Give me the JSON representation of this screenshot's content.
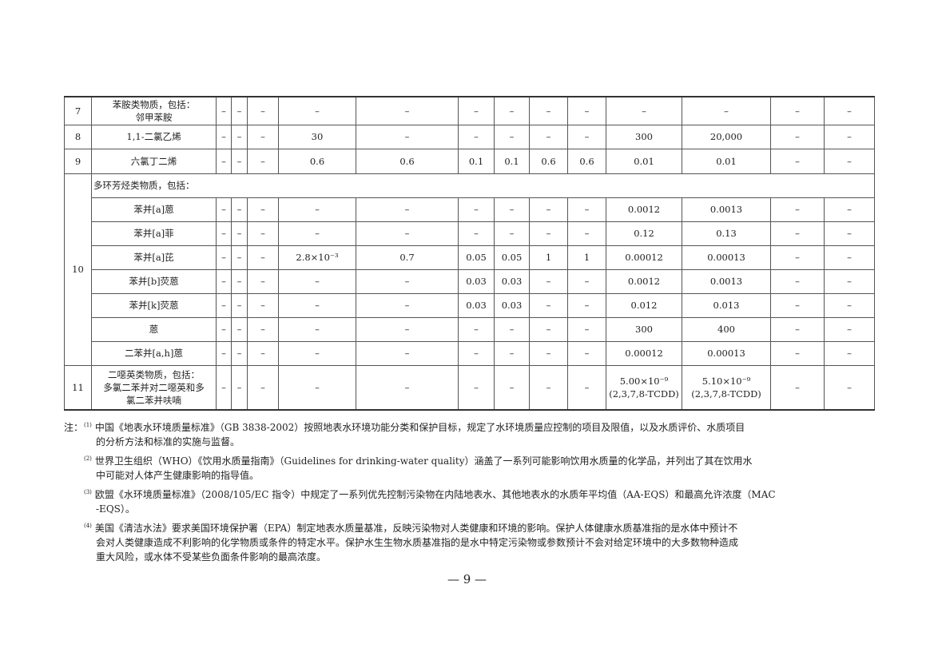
{
  "table": {
    "rows": [
      {
        "num": "7",
        "name": [
          "苯胺类物质，包括：",
          "邻甲苯胺"
        ],
        "values": [
          "–",
          "–",
          "–",
          "–",
          "–",
          "–",
          "–",
          "–",
          "–",
          "–",
          "–",
          "–",
          "–"
        ]
      },
      {
        "num": "8",
        "name": [
          "1,1-二氯乙烯"
        ],
        "values": [
          "–",
          "–",
          "–",
          "30",
          "–",
          "–",
          "–",
          "–",
          "–",
          "300",
          "20,000",
          "–",
          "–"
        ]
      },
      {
        "num": "9",
        "name": [
          "六氯丁二烯"
        ],
        "values": [
          "–",
          "–",
          "–",
          "0.6",
          "0.6",
          "0.1",
          "0.1",
          "0.6",
          "0.6",
          "0.01",
          "0.01",
          "–",
          "–"
        ]
      }
    ],
    "group10": {
      "num": "10",
      "header": "多环芳烃类物质，包括：",
      "rows": [
        {
          "name": [
            "苯并[a]蒽"
          ],
          "values": [
            "–",
            "–",
            "–",
            "–",
            "–",
            "–",
            "–",
            "–",
            "–",
            "0.0012",
            "0.0013",
            "–",
            "–"
          ]
        },
        {
          "name": [
            "苯并[a]菲"
          ],
          "values": [
            "–",
            "–",
            "–",
            "–",
            "–",
            "–",
            "–",
            "–",
            "–",
            "0.12",
            "0.13",
            "–",
            "–"
          ]
        },
        {
          "name": [
            "苯并[a]芘"
          ],
          "values": [
            "–",
            "–",
            "–",
            "2.8×10⁻³",
            "0.7",
            "0.05",
            "0.05",
            "1",
            "1",
            "0.00012",
            "0.00013",
            "–",
            "–"
          ]
        },
        {
          "name": [
            "苯并[b]荧蒽"
          ],
          "values": [
            "–",
            "–",
            "–",
            "–",
            "–",
            "0.03",
            "0.03",
            "–",
            "–",
            "0.0012",
            "0.0013",
            "–",
            "–"
          ]
        },
        {
          "name": [
            "苯并[k]荧蒽"
          ],
          "values": [
            "–",
            "–",
            "–",
            "–",
            "–",
            "0.03",
            "0.03",
            "–",
            "–",
            "0.012",
            "0.013",
            "–",
            "–"
          ]
        },
        {
          "name": [
            "蒽"
          ],
          "values": [
            "–",
            "–",
            "–",
            "–",
            "–",
            "–",
            "–",
            "–",
            "–",
            "300",
            "400",
            "–",
            "–"
          ]
        },
        {
          "name": [
            "二苯并[a,h]蒽"
          ],
          "values": [
            "–",
            "–",
            "–",
            "–",
            "–",
            "–",
            "–",
            "–",
            "–",
            "0.00012",
            "0.00013",
            "–",
            "–"
          ]
        }
      ]
    },
    "row11": {
      "num": "11",
      "name": [
        "二噁英类物质，包括：",
        "多氯二苯并对二噁英和多",
        "氯二苯并呋喃"
      ],
      "values": [
        "–",
        "–",
        "–",
        "–",
        "–",
        "–",
        "–",
        "–",
        "–",
        "5.00×10⁻⁹\n(2,3,7,8-TCDD)",
        "5.10×10⁻⁹\n(2,3,7,8-TCDD)",
        "–",
        "–"
      ]
    }
  },
  "notes": {
    "label": "注：",
    "items": [
      {
        "marker": "(1)",
        "lines": [
          "中国《地表水环境质量标准》（GB 3838-2002）按照地表水环境功能分类和保护目标，规定了水环境质量应控制的项目及限值，以及水质评价、水质项目",
          "的分析方法和标准的实施与监督。"
        ]
      },
      {
        "marker": "(2)",
        "lines": [
          "世界卫生组织（WHO）《饮用水质量指南》（Guidelines for drinking-water quality）涵盖了一系列可能影响饮用水质量的化学品，并列出了其在饮用水",
          "中可能对人体产生健康影响的指导值。"
        ]
      },
      {
        "marker": "(3)",
        "lines": [
          "欧盟《水环境质量标准》（2008/105/EC 指令）中规定了一系列优先控制污染物在内陆地表水、其他地表水的水质年平均值（AA-EQS）和最高允许浓度（MAC",
          "-EQS）。"
        ]
      },
      {
        "marker": "(4)",
        "lines": [
          "美国《清洁水法》要求美国环境保护署（EPA）制定地表水质量基准，反映污染物对人类健康和环境的影响。保护人体健康水质基准指的是水体中预计不",
          "会对人类健康造成不利影响的化学物质或条件的特定水平。保护水生生物水质基准指的是水中特定污染物或参数预计不会对给定环境中的大多数物种造成",
          "重大风险，或水体不受某些负面条件影响的最高浓度。"
        ]
      }
    ]
  },
  "page_number": "— 9 —"
}
